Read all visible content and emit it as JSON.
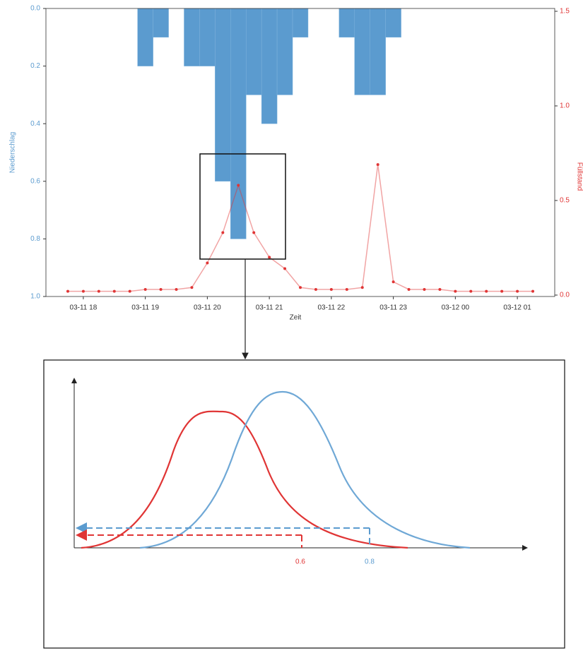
{
  "chart_data": {
    "type": "bar",
    "xlabel": "Zeit",
    "ylabel": "Niederschlag",
    "y2label": "Füllstand",
    "categories": [
      null,
      "03-11 18",
      null,
      null,
      null,
      "03-11 19",
      null,
      null,
      null,
      "03-11 20",
      null,
      null,
      null,
      "03-11 21",
      null,
      null,
      null,
      "03-11 22",
      null,
      null,
      null,
      "03-11 23",
      null,
      null,
      null,
      "03-12 00",
      null,
      null,
      null,
      "03-12 01",
      null
    ],
    "ylim": [
      0,
      1
    ],
    "y_reversed": true,
    "yticks": [
      {
        "value": 0,
        "label": "0.0"
      },
      0.2,
      0.4,
      0.6,
      0.8,
      {
        "value": 1,
        "label": "1.0"
      }
    ],
    "y2lim": [
      0,
      1.5
    ],
    "y2ticks": [
      {
        "value": 0,
        "label": "0.0"
      },
      0.5,
      {
        "value": 1,
        "label": "1.0"
      },
      1.5
    ],
    "series": [
      {
        "type": "bar",
        "color": "#5b9bcf",
        "values": [
          0,
          0,
          0,
          0,
          0,
          0.2,
          0.1,
          0,
          0.2,
          0.2,
          0.6,
          0.8,
          0.3,
          0.4,
          0.3,
          0.1,
          0,
          0,
          0.1,
          0.3,
          0.3,
          0.1,
          0,
          0,
          0,
          0,
          0,
          0,
          0,
          0,
          0
        ]
      },
      {
        "type": "line",
        "axis": "y2",
        "color": "#e03535",
        "values": [
          0.02,
          0.02,
          0.02,
          0.02,
          0.02,
          0.03,
          0.03,
          0.03,
          0.04,
          0.17,
          0.33,
          0.58,
          0.33,
          0.2,
          0.14,
          0.04,
          0.03,
          0.03,
          0.03,
          0.04,
          0.69,
          0.07,
          0.03,
          0.03,
          0.03,
          0.02,
          0.02,
          0.02,
          0.02,
          0.02,
          0.02
        ]
      }
    ]
  },
  "diagram": {
    "red_label": "0.6",
    "blue_label": "0.8"
  }
}
